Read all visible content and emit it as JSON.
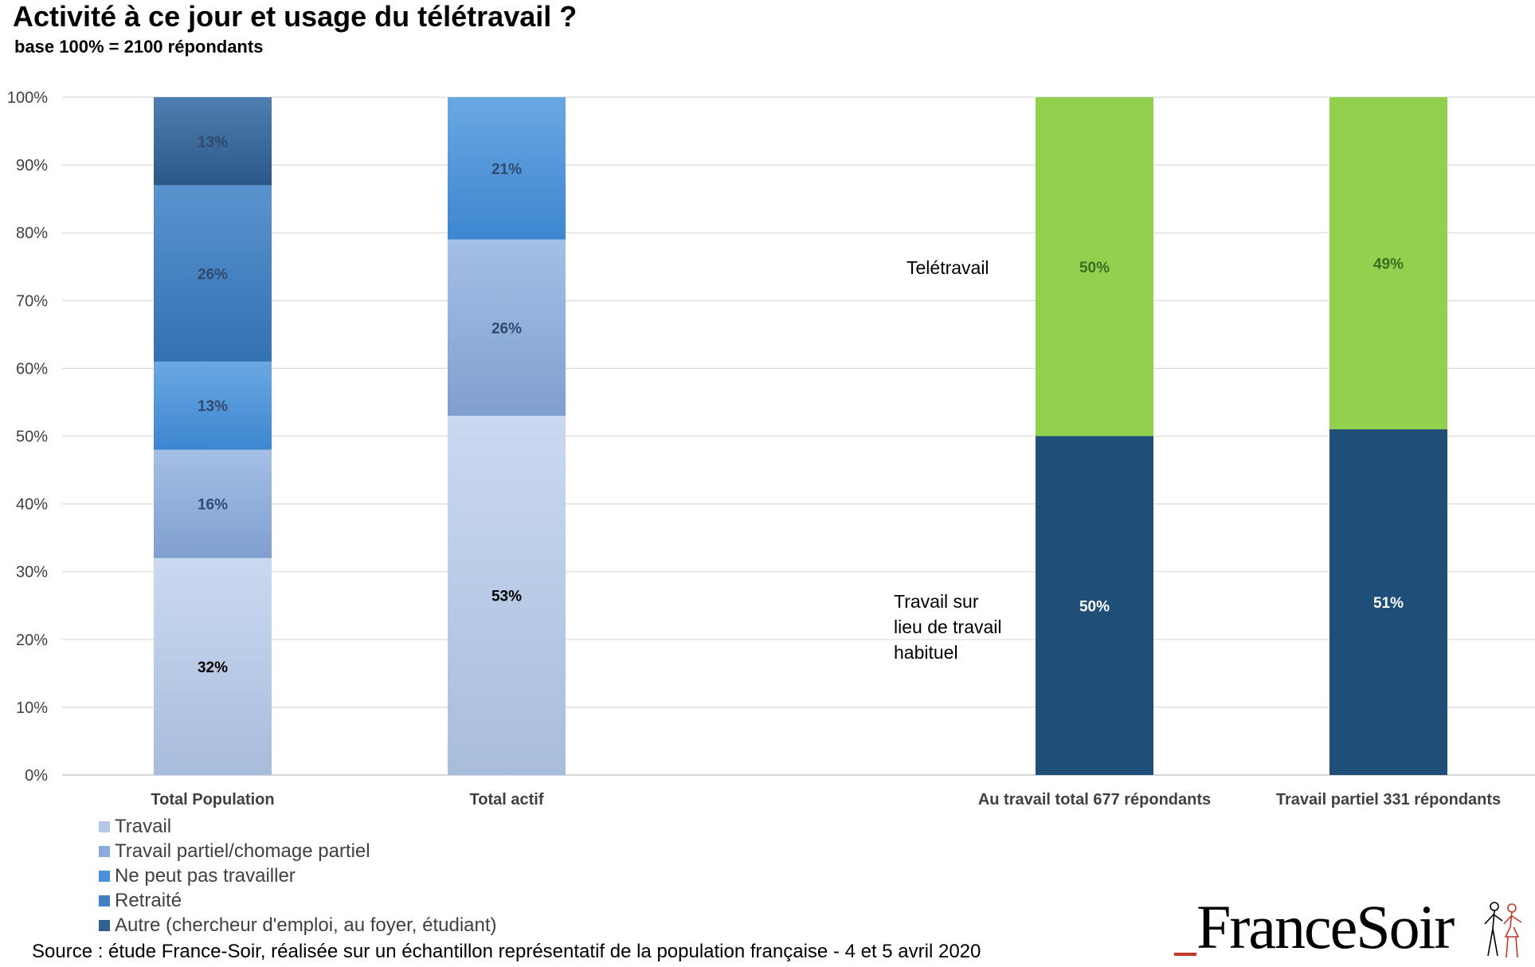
{
  "header": {
    "title": "Activité à ce jour et usage du télétravail ?",
    "subtitle": "base 100% = 2100 répondants"
  },
  "chart_data": {
    "type": "bar",
    "stacked": true,
    "ylim": [
      0,
      100
    ],
    "y_ticks": [
      "0%",
      "10%",
      "20%",
      "30%",
      "40%",
      "50%",
      "60%",
      "70%",
      "80%",
      "90%",
      "100%"
    ],
    "grid": true,
    "bars": [
      {
        "category": "Total Population",
        "segments": [
          {
            "series": "Travail",
            "value": 32,
            "label": "32%"
          },
          {
            "series": "Travail partiel/chomage partiel",
            "value": 16,
            "label": "16%"
          },
          {
            "series": "Ne peut pas travailler",
            "value": 13,
            "label": "13%"
          },
          {
            "series": "Retraité",
            "value": 26,
            "label": "26%"
          },
          {
            "series": "Autre (chercheur d'emploi, au foyer, étudiant)",
            "value": 13,
            "label": "13%"
          }
        ]
      },
      {
        "category": "Total actif",
        "segments": [
          {
            "series": "Travail",
            "value": 53,
            "label": "53%"
          },
          {
            "series": "Travail partiel/chomage partiel",
            "value": 26,
            "label": "26%"
          },
          {
            "series": "Ne peut pas travailler",
            "value": 21,
            "label": "21%"
          }
        ]
      },
      {
        "category": "Au travail total 677 répondants",
        "segments": [
          {
            "series": "Travail sur lieu de travail habituel",
            "value": 50,
            "label": "50%"
          },
          {
            "series": "Teletravail",
            "value": 50,
            "label": "50%"
          }
        ]
      },
      {
        "category": "Travail partiel 331 répondants",
        "segments": [
          {
            "series": "Travail sur lieu de travail habituel",
            "value": 51,
            "label": "51%"
          },
          {
            "series": "Teletravail",
            "value": 49,
            "label": "49%"
          }
        ]
      }
    ],
    "annotations": [
      {
        "text": "Telétravail"
      },
      {
        "lines": [
          "Travail sur",
          "lieu de travail",
          "habituel"
        ]
      }
    ],
    "legend": {
      "placement": "bottom-left",
      "items": [
        {
          "label": "Travail",
          "color": "#b4c7e7"
        },
        {
          "label": "Travail partiel/chomage partiel",
          "color": "#8eaadb"
        },
        {
          "label": "Ne peut pas travailler",
          "color": "#4a90d9"
        },
        {
          "label": "Retraité",
          "color": "#3f7fc2"
        },
        {
          "label": "Autre (chercheur d'emploi, au foyer, étudiant)",
          "color": "#2e5f91"
        }
      ]
    },
    "colors": {
      "Travail": "#b4c7e7",
      "Travail partiel/chomage partiel": "#8eaadb",
      "Ne peut pas travailler": "#4a90d9",
      "Retraité": "#3f7fc2",
      "Autre (chercheur d'emploi, au foyer, étudiant)": "#2e5f91",
      "Travail sur lieu de travail habituel": "#1f4e79",
      "Teletravail": "#92d050"
    }
  },
  "footer": {
    "source": "Source : étude France-Soir, réalisée sur un échantillon représentatif de la population française - 4 et 5 avril 2020",
    "brand": "FranceSoir"
  }
}
